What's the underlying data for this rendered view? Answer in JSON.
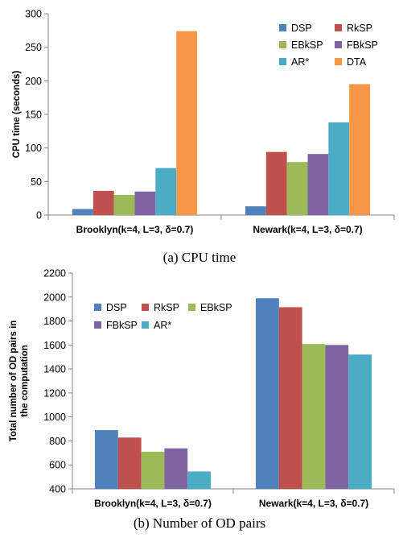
{
  "chart_data": [
    {
      "type": "bar",
      "ylabel": "CPU time (seconds)",
      "categories": [
        "Brooklyn(k=4, L=3, δ=0.7)",
        "Newark(k=4, L=3, δ=0.7)"
      ],
      "ylim": [
        0,
        300
      ],
      "yticks": [
        0,
        50,
        100,
        150,
        200,
        250,
        300
      ],
      "series": [
        {
          "name": "DSP",
          "color": "#4f81bd",
          "values": [
            9,
            13
          ]
        },
        {
          "name": "RkSP",
          "color": "#c0504d",
          "values": [
            36,
            94
          ]
        },
        {
          "name": "EBkSP",
          "color": "#9bbb59",
          "values": [
            30,
            79
          ]
        },
        {
          "name": "FBkSP",
          "color": "#8064a2",
          "values": [
            35,
            91
          ]
        },
        {
          "name": "AR*",
          "color": "#4bacc6",
          "values": [
            70,
            138
          ]
        },
        {
          "name": "DTA",
          "color": "#f79646",
          "values": [
            274,
            195
          ]
        }
      ],
      "legend": "top-right",
      "caption": "(a) CPU time"
    },
    {
      "type": "bar",
      "ylabel": "Total number of OD pairs in the computation",
      "categories": [
        "Brooklyn(k=4, L=3, δ=0.7)",
        "Newark(k=4, L=3, δ=0.7)"
      ],
      "ylim": [
        400,
        2200
      ],
      "yticks": [
        400,
        600,
        800,
        1000,
        1200,
        1400,
        1600,
        1800,
        2000,
        2200
      ],
      "series": [
        {
          "name": "DSP",
          "color": "#4f81bd",
          "values": [
            890,
            1990
          ]
        },
        {
          "name": "RkSP",
          "color": "#c0504d",
          "values": [
            828,
            1915
          ]
        },
        {
          "name": "EBkSP",
          "color": "#9bbb59",
          "values": [
            710,
            1608
          ]
        },
        {
          "name": "FBkSP",
          "color": "#8064a2",
          "values": [
            738,
            1600
          ]
        },
        {
          "name": "AR*",
          "color": "#4bacc6",
          "values": [
            545,
            1520
          ]
        }
      ],
      "legend": "top-left",
      "caption": "(b) Number of OD pairs"
    }
  ]
}
